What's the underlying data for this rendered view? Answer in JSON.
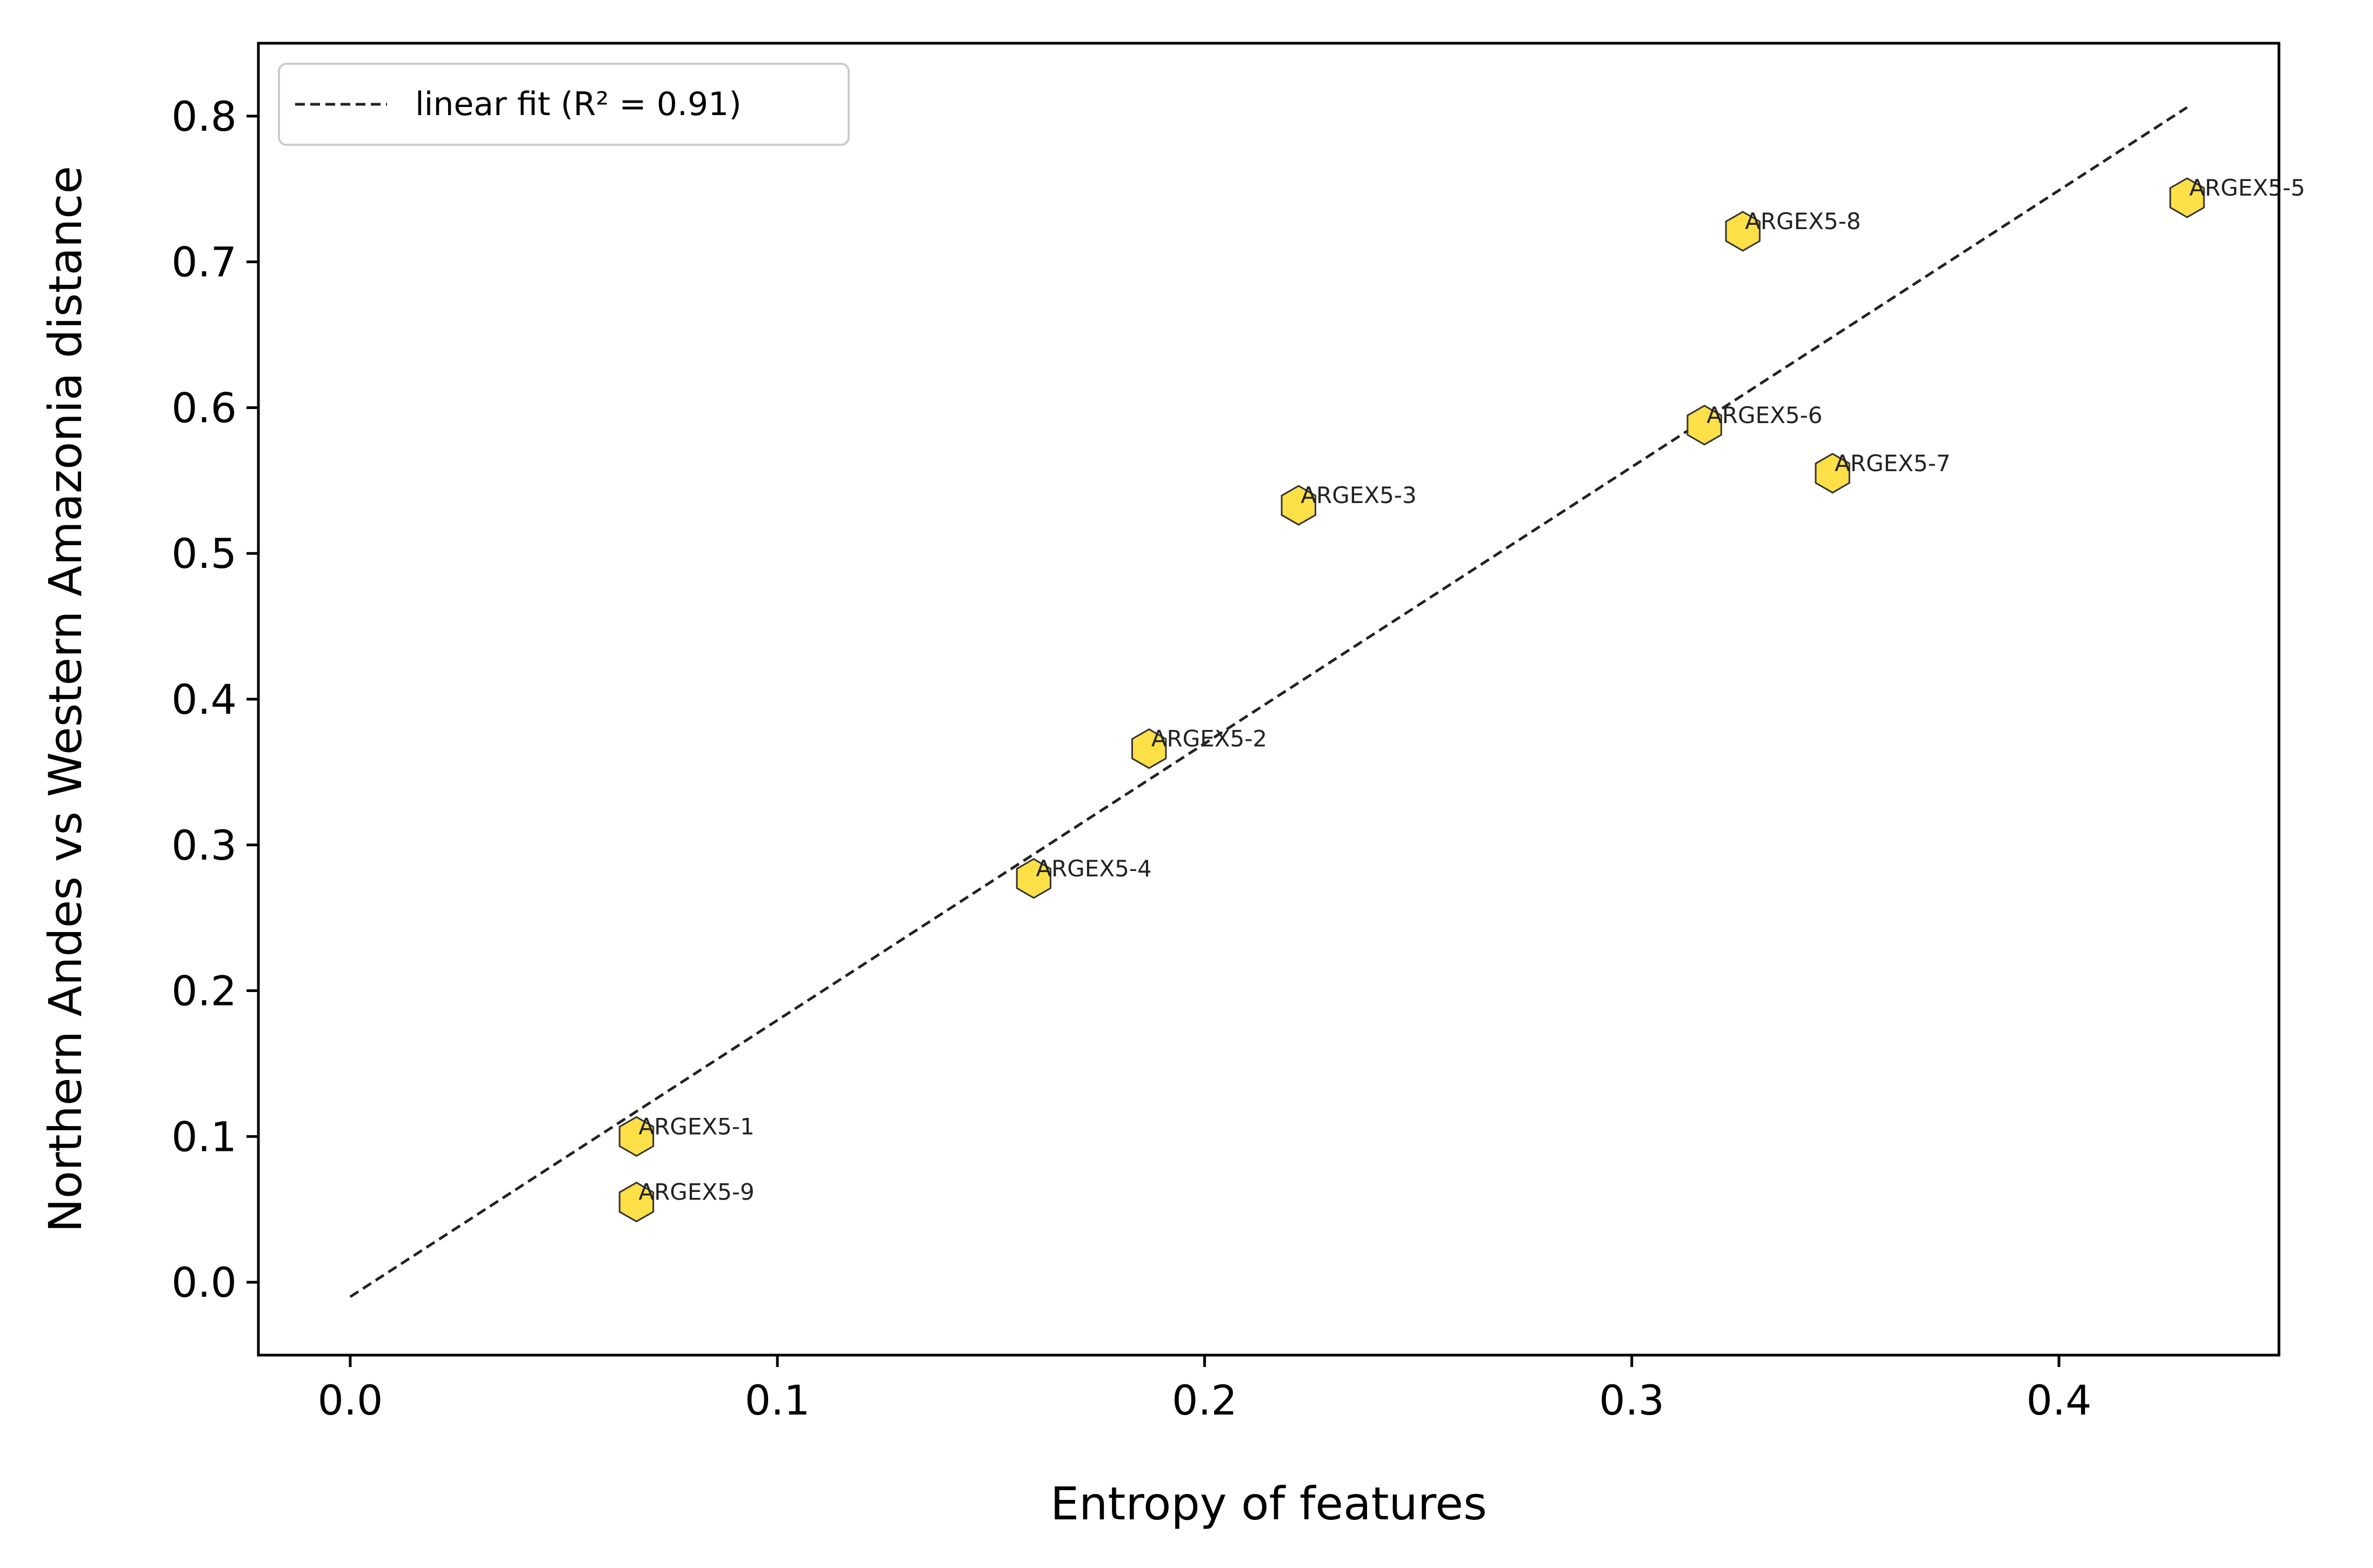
{
  "chart_data": {
    "type": "scatter",
    "xlabel": "Entropy of features",
    "ylabel": "Northern Andes vs Western Amazonia distance",
    "xlim": [
      -0.0215,
      0.4515
    ],
    "ylim": [
      -0.05,
      0.85
    ],
    "xticks": [
      "0.0",
      "0.1",
      "0.2",
      "0.3",
      "0.4"
    ],
    "xtick_values": [
      0.0,
      0.1,
      0.2,
      0.3,
      0.4
    ],
    "yticks": [
      "0.0",
      "0.1",
      "0.2",
      "0.3",
      "0.4",
      "0.5",
      "0.6",
      "0.7",
      "0.8"
    ],
    "ytick_values": [
      0.0,
      0.1,
      0.2,
      0.3,
      0.4,
      0.5,
      0.6,
      0.7,
      0.8
    ],
    "grid": false,
    "legend_position": "top-left",
    "legend_label": "linear fit (R² = 0.91)",
    "marker": "hexagon",
    "marker_color": "#fde047",
    "marker_edge_color": "#333333",
    "fit_line": {
      "style": "dashed",
      "color": "#222222",
      "x": [
        0.0,
        0.43
      ],
      "y": [
        -0.01,
        0.806
      ]
    },
    "points": [
      {
        "label": "ARGEX5-1",
        "x": 0.067,
        "y": 0.1
      },
      {
        "label": "ARGEX5-2",
        "x": 0.187,
        "y": 0.366
      },
      {
        "label": "ARGEX5-3",
        "x": 0.222,
        "y": 0.533
      },
      {
        "label": "ARGEX5-4",
        "x": 0.16,
        "y": 0.277
      },
      {
        "label": "ARGEX5-5",
        "x": 0.43,
        "y": 0.744
      },
      {
        "label": "ARGEX5-6",
        "x": 0.317,
        "y": 0.588
      },
      {
        "label": "ARGEX5-7",
        "x": 0.347,
        "y": 0.555
      },
      {
        "label": "ARGEX5-8",
        "x": 0.326,
        "y": 0.721
      },
      {
        "label": "ARGEX5-9",
        "x": 0.067,
        "y": 0.055
      }
    ]
  }
}
